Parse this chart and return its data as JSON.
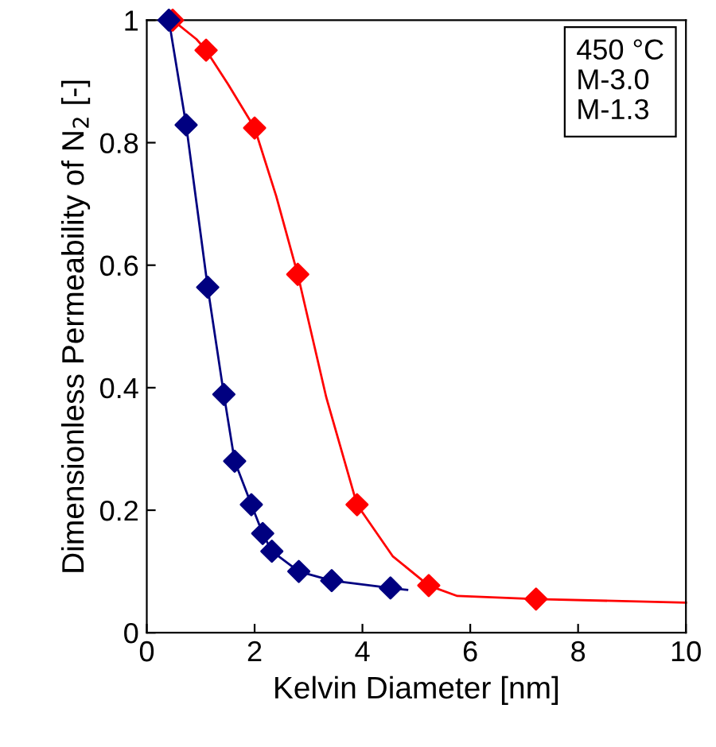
{
  "chart_data": {
    "type": "scatter",
    "xlabel": "Kelvin Diameter [nm]",
    "ylabel": "Dimensionless Permeability of N$_{2}$ [-]",
    "xlim": [
      0,
      10
    ],
    "xticks": [
      0,
      2,
      4,
      6,
      8,
      10
    ],
    "ylim": [
      0,
      1
    ],
    "yticks": [
      0,
      0.2,
      0.4,
      0.6,
      0.8,
      1
    ],
    "grid": false,
    "marker": "diamond",
    "annotations": [
      "450 °C\nM-3.0\nM-1.3"
    ],
    "series": [
      {
        "type": "line",
        "color": "#ff0000",
        "marker": "none",
        "x": [
          0.48,
          0.92,
          1.1,
          1.51,
          2.0,
          2.4,
          2.8,
          3.33,
          3.9,
          4.56,
          5.23,
          5.76,
          7.22,
          10
        ],
        "values": [
          1.0,
          0.969,
          0.951,
          0.895,
          0.824,
          0.713,
          0.585,
          0.384,
          0.209,
          0.125,
          0.077,
          0.06,
          0.055,
          0.049
        ]
      },
      {
        "type": "line",
        "color": "#000080",
        "marker": "none",
        "x": [
          0.41,
          0.73,
          1.13,
          1.43,
          1.63,
          1.94,
          2.15,
          2.32,
          2.82,
          3.43,
          4.52,
          4.83
        ],
        "values": [
          1.0,
          0.829,
          0.564,
          0.389,
          0.28,
          0.209,
          0.162,
          0.133,
          0.1,
          0.085,
          0.073,
          0.07
        ]
      },
      {
        "color": "#ff0000",
        "x": [
          0.48,
          1.1,
          2.0,
          2.8,
          3.9,
          5.23,
          7.22
        ],
        "values": [
          1.0,
          0.951,
          0.824,
          0.585,
          0.209,
          0.077,
          0.055
        ]
      },
      {
        "color": "#000080",
        "x": [
          0.41,
          0.73,
          1.13,
          1.43,
          1.63,
          1.94,
          2.15,
          2.32,
          2.82,
          3.43,
          4.52
        ],
        "values": [
          1.0,
          0.829,
          0.564,
          0.389,
          0.28,
          0.209,
          0.162,
          0.133,
          0.1,
          0.085,
          0.073
        ]
      }
    ]
  }
}
